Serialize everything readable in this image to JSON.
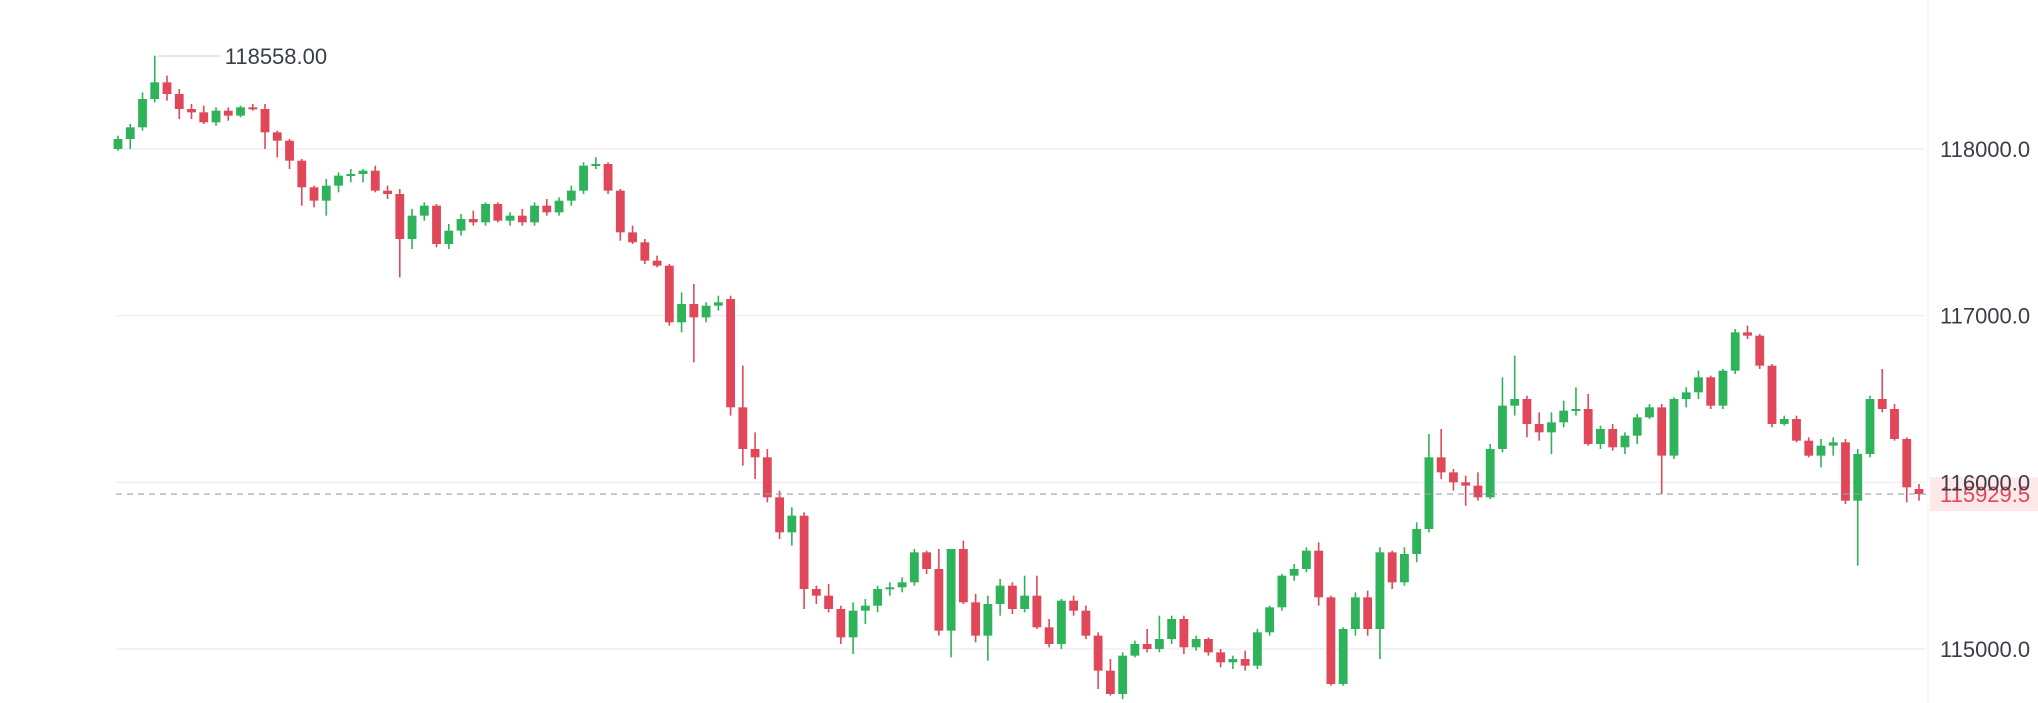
{
  "chart_data": {
    "type": "candlestick",
    "yticks": [
      115000,
      116000,
      117000,
      118000
    ],
    "ytick_labels": [
      "115000.0",
      "116000.0",
      "117000.0",
      "118000.0"
    ],
    "ylim": [
      114700,
      118850
    ],
    "grid": true,
    "high_label": "118558.00",
    "high_value": 118558.0,
    "last_price_label": "115929.5",
    "last_price": 115929.5,
    "colors": {
      "up": "#2eb35a",
      "down": "#e0485a",
      "grid": "#efefef",
      "dash": "#9aa0a6",
      "text": "#3a3f47",
      "price_tag_bg": "#fde8ea",
      "price_tag_text": "#e0485a"
    },
    "candles": [
      [
        118000,
        118080,
        117990,
        118060
      ],
      [
        118060,
        118150,
        118000,
        118130
      ],
      [
        118130,
        118340,
        118110,
        118300
      ],
      [
        118300,
        118560,
        118280,
        118400
      ],
      [
        118400,
        118440,
        118290,
        118330
      ],
      [
        118330,
        118360,
        118180,
        118240
      ],
      [
        118240,
        118270,
        118180,
        118220
      ],
      [
        118220,
        118260,
        118150,
        118160
      ],
      [
        118160,
        118250,
        118140,
        118230
      ],
      [
        118230,
        118250,
        118170,
        118200
      ],
      [
        118200,
        118260,
        118190,
        118250
      ],
      [
        118250,
        118270,
        118230,
        118240
      ],
      [
        118240,
        118270,
        118000,
        118100
      ],
      [
        118100,
        118110,
        117950,
        118050
      ],
      [
        118050,
        118060,
        117880,
        117930
      ],
      [
        117930,
        117940,
        117660,
        117770
      ],
      [
        117770,
        117780,
        117650,
        117690
      ],
      [
        117690,
        117820,
        117600,
        117780
      ],
      [
        117780,
        117860,
        117740,
        117840
      ],
      [
        117840,
        117880,
        117800,
        117850
      ],
      [
        117850,
        117880,
        117800,
        117870
      ],
      [
        117870,
        117900,
        117740,
        117750
      ],
      [
        117750,
        117780,
        117700,
        117730
      ],
      [
        117730,
        117760,
        117230,
        117460
      ],
      [
        117460,
        117640,
        117400,
        117600
      ],
      [
        117600,
        117680,
        117570,
        117660
      ],
      [
        117660,
        117670,
        117410,
        117430
      ],
      [
        117430,
        117550,
        117400,
        117510
      ],
      [
        117510,
        117610,
        117480,
        117580
      ],
      [
        117580,
        117630,
        117540,
        117560
      ],
      [
        117560,
        117680,
        117540,
        117670
      ],
      [
        117670,
        117680,
        117560,
        117570
      ],
      [
        117570,
        117620,
        117540,
        117600
      ],
      [
        117600,
        117640,
        117540,
        117560
      ],
      [
        117560,
        117680,
        117540,
        117660
      ],
      [
        117660,
        117700,
        117600,
        117620
      ],
      [
        117620,
        117710,
        117600,
        117690
      ],
      [
        117690,
        117780,
        117660,
        117750
      ],
      [
        117750,
        117920,
        117730,
        117900
      ],
      [
        117900,
        117950,
        117880,
        117910
      ],
      [
        117910,
        117920,
        117730,
        117750
      ],
      [
        117750,
        117760,
        117450,
        117500
      ],
      [
        117500,
        117540,
        117430,
        117440
      ],
      [
        117440,
        117460,
        117310,
        117330
      ],
      [
        117330,
        117360,
        117290,
        117300
      ],
      [
        117300,
        117310,
        116940,
        116960
      ],
      [
        116960,
        117140,
        116900,
        117070
      ],
      [
        117070,
        117190,
        116720,
        116990
      ],
      [
        116990,
        117080,
        116960,
        117060
      ],
      [
        117060,
        117120,
        117030,
        117080
      ],
      [
        117100,
        117120,
        116400,
        116450
      ],
      [
        116450,
        116700,
        116100,
        116200
      ],
      [
        116200,
        116300,
        116020,
        116150
      ],
      [
        116150,
        116200,
        115880,
        115910
      ],
      [
        115910,
        115950,
        115660,
        115700
      ],
      [
        115700,
        115850,
        115620,
        115800
      ],
      [
        115800,
        115820,
        115240,
        115360
      ],
      [
        115360,
        115380,
        115270,
        115320
      ],
      [
        115320,
        115390,
        115220,
        115240
      ],
      [
        115240,
        115260,
        115030,
        115070
      ],
      [
        115070,
        115280,
        114970,
        115230
      ],
      [
        115230,
        115300,
        115150,
        115260
      ],
      [
        115260,
        115380,
        115220,
        115360
      ],
      [
        115360,
        115400,
        115320,
        115370
      ],
      [
        115370,
        115430,
        115340,
        115400
      ],
      [
        115400,
        115600,
        115380,
        115580
      ],
      [
        115580,
        115590,
        115450,
        115480
      ],
      [
        115480,
        115600,
        115080,
        115110
      ],
      [
        115110,
        115600,
        114950,
        115600
      ],
      [
        115600,
        115650,
        115270,
        115280
      ],
      [
        115280,
        115330,
        115040,
        115080
      ],
      [
        115080,
        115320,
        114930,
        115270
      ],
      [
        115270,
        115420,
        115200,
        115380
      ],
      [
        115380,
        115400,
        115210,
        115240
      ],
      [
        115240,
        115440,
        115220,
        115320
      ],
      [
        115320,
        115440,
        115120,
        115130
      ],
      [
        115130,
        115180,
        115010,
        115030
      ],
      [
        115030,
        115300,
        115000,
        115290
      ],
      [
        115290,
        115320,
        115200,
        115230
      ],
      [
        115230,
        115260,
        115060,
        115080
      ],
      [
        115080,
        115100,
        114760,
        114870
      ],
      [
        114870,
        114940,
        114720,
        114730
      ],
      [
        114730,
        114980,
        114700,
        114960
      ],
      [
        114960,
        115050,
        114950,
        115030
      ],
      [
        115030,
        115120,
        114980,
        115000
      ],
      [
        115000,
        115200,
        114980,
        115060
      ],
      [
        115060,
        115200,
        115030,
        115180
      ],
      [
        115180,
        115200,
        114970,
        115010
      ],
      [
        115010,
        115080,
        114990,
        115060
      ],
      [
        115060,
        115070,
        114960,
        114980
      ],
      [
        114980,
        115000,
        114890,
        114920
      ],
      [
        114920,
        114960,
        114880,
        114940
      ],
      [
        114940,
        114990,
        114870,
        114900
      ],
      [
        114900,
        115120,
        114880,
        115100
      ],
      [
        115100,
        115260,
        115080,
        115250
      ],
      [
        115250,
        115450,
        115230,
        115440
      ],
      [
        115440,
        115510,
        115410,
        115480
      ],
      [
        115480,
        115610,
        115460,
        115590
      ],
      [
        115590,
        115640,
        115260,
        115310
      ],
      [
        115310,
        115320,
        114780,
        114790
      ],
      [
        114790,
        115130,
        114780,
        115120
      ],
      [
        115120,
        115340,
        115080,
        115310
      ],
      [
        115310,
        115350,
        115080,
        115120
      ],
      [
        115120,
        115610,
        114940,
        115580
      ],
      [
        115580,
        115590,
        115360,
        115400
      ],
      [
        115400,
        115610,
        115380,
        115570
      ],
      [
        115570,
        115760,
        115520,
        115720
      ],
      [
        115720,
        116290,
        115700,
        116150
      ],
      [
        116150,
        116320,
        116020,
        116060
      ],
      [
        116060,
        116080,
        115950,
        116000
      ],
      [
        116000,
        116040,
        115860,
        115980
      ],
      [
        115980,
        116060,
        115890,
        115910
      ],
      [
        115910,
        116230,
        115900,
        116200
      ],
      [
        116200,
        116630,
        116180,
        116460
      ],
      [
        116460,
        116760,
        116400,
        116500
      ],
      [
        116500,
        116520,
        116270,
        116350
      ],
      [
        116350,
        116420,
        116250,
        116300
      ],
      [
        116300,
        116420,
        116170,
        116360
      ],
      [
        116360,
        116490,
        116330,
        116430
      ],
      [
        116430,
        116570,
        116400,
        116440
      ],
      [
        116440,
        116530,
        116220,
        116230
      ],
      [
        116230,
        116340,
        116200,
        116320
      ],
      [
        116320,
        116350,
        116190,
        116210
      ],
      [
        116210,
        116300,
        116170,
        116280
      ],
      [
        116280,
        116410,
        116230,
        116390
      ],
      [
        116390,
        116470,
        116380,
        116450
      ],
      [
        116450,
        116470,
        115930,
        116160
      ],
      [
        116160,
        116510,
        116140,
        116500
      ],
      [
        116500,
        116570,
        116450,
        116540
      ],
      [
        116540,
        116670,
        116500,
        116630
      ],
      [
        116630,
        116640,
        116440,
        116460
      ],
      [
        116460,
        116680,
        116440,
        116670
      ],
      [
        116670,
        116920,
        116650,
        116900
      ],
      [
        116900,
        116940,
        116860,
        116880
      ],
      [
        116880,
        116890,
        116680,
        116700
      ],
      [
        116700,
        116710,
        116330,
        116350
      ],
      [
        116350,
        116400,
        116340,
        116380
      ],
      [
        116380,
        116400,
        116240,
        116250
      ],
      [
        116250,
        116270,
        116150,
        116160
      ],
      [
        116160,
        116260,
        116090,
        116220
      ],
      [
        116220,
        116270,
        116160,
        116240
      ],
      [
        116240,
        116260,
        115870,
        115890
      ],
      [
        115890,
        116200,
        115500,
        116170
      ],
      [
        116170,
        116520,
        116150,
        116500
      ],
      [
        116500,
        116680,
        116420,
        116440
      ],
      [
        116440,
        116470,
        116250,
        116260
      ],
      [
        116260,
        116270,
        115880,
        115970
      ],
      [
        115960,
        115990,
        115890,
        115930
      ]
    ]
  }
}
